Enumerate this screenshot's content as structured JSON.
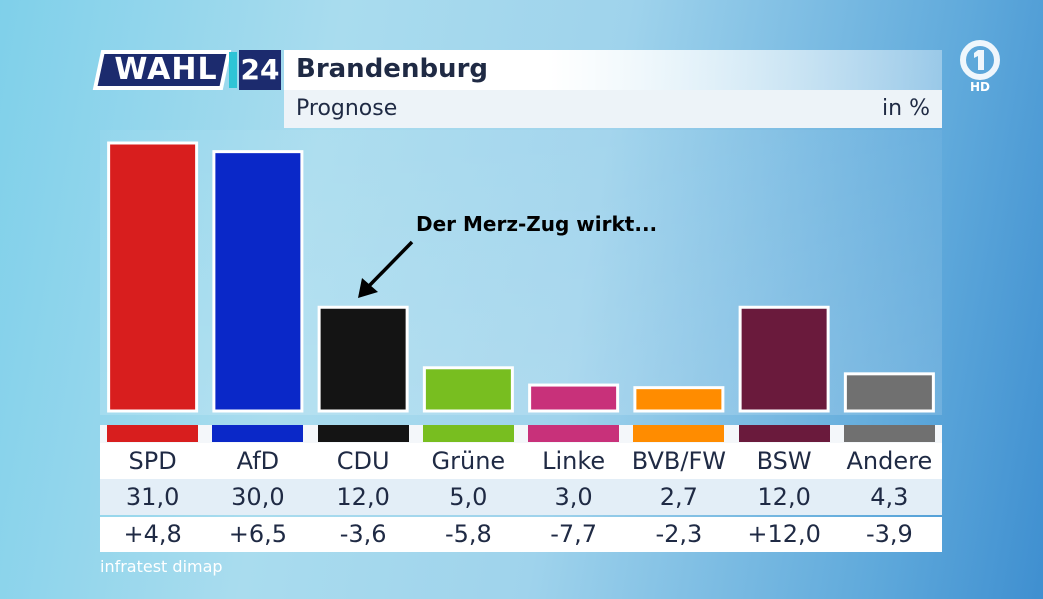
{
  "header": {
    "brand_word": "WAHL",
    "brand_number": "24",
    "title": "Brandenburg",
    "subtitle": "Prognose",
    "unit": "in %"
  },
  "logo": {
    "icon": "ard-one-logo-icon",
    "hd_label": "HD"
  },
  "annotation": "Der Merz-Zug wirkt...",
  "source": "infratest dimap",
  "chart_data": {
    "type": "bar",
    "title": "Brandenburg",
    "subtitle": "Prognose",
    "unit": "in %",
    "categories": [
      "SPD",
      "AfD",
      "CDU",
      "Grüne",
      "Linke",
      "BVB/FW",
      "BSW",
      "Andere"
    ],
    "values": [
      31.0,
      30.0,
      12.0,
      5.0,
      3.0,
      2.7,
      12.0,
      4.3
    ],
    "value_labels": [
      "31,0",
      "30,0",
      "12,0",
      "5,0",
      "3,0",
      "2,7",
      "12,0",
      "4,3"
    ],
    "changes": [
      "+4,8",
      "+6,5",
      "-3,6",
      "-5,8",
      "-7,7",
      "-2,3",
      "+12,0",
      "-3,9"
    ],
    "colors": [
      "#d81e1e",
      "#0a28c8",
      "#141414",
      "#78be20",
      "#c8317a",
      "#ff8c00",
      "#6a1a3c",
      "#707070"
    ],
    "ylim": [
      0,
      31
    ],
    "grid": false,
    "legend": "none"
  }
}
